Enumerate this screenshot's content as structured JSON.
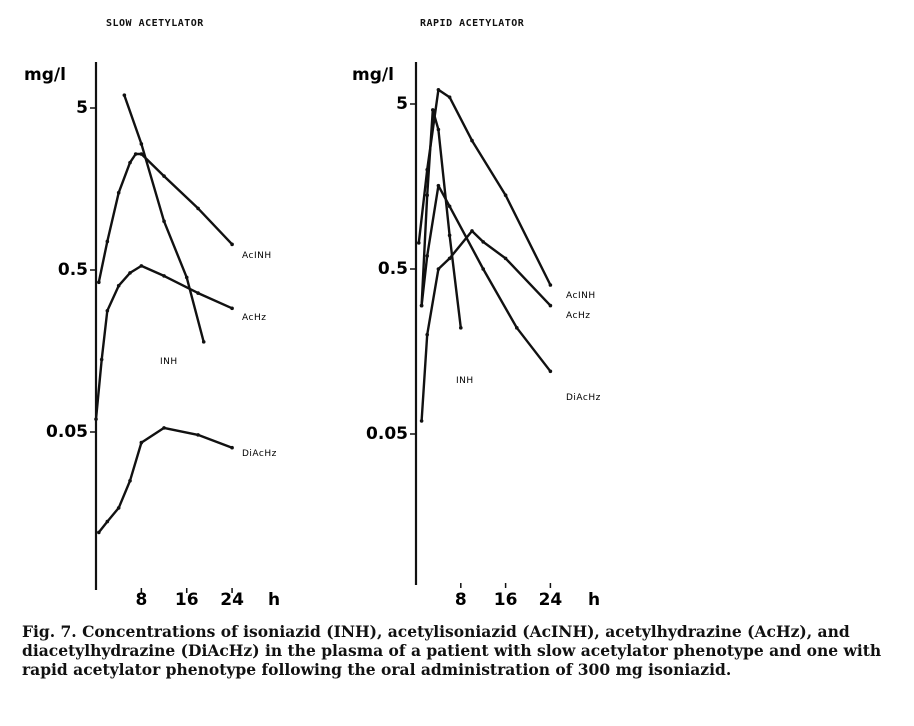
{
  "figure": {
    "caption": "Fig. 7. Concentrations of isoniazid (INH), acetylisoniazid (AcINH), acetylhydrazine (AcHz), and diacetylhydrazine (DiAcHz) in the plasma of a patient with slow acetylator phenotype and one with rapid acetylator phenotype following the oral administration of 300 mg isoniazid."
  },
  "chart_data": [
    {
      "type": "line",
      "title": "SLOW ACETYLATOR",
      "ylabel": "mg/l",
      "xlabel": "h",
      "yscale": "log",
      "ylim": [
        0.01,
        10
      ],
      "xlim": [
        0,
        28
      ],
      "yticks": [
        {
          "value": 5,
          "label": "5"
        },
        {
          "value": 0.5,
          "label": "0.5"
        },
        {
          "value": 0.05,
          "label": "0.05"
        }
      ],
      "xticks": [
        {
          "value": 8,
          "label": "8"
        },
        {
          "value": 16,
          "label": "16"
        },
        {
          "value": 24,
          "label": "24"
        }
      ],
      "series": [
        {
          "name": "INH",
          "x": [
            5,
            8,
            12,
            16,
            19
          ],
          "y": [
            6.0,
            3.0,
            1.0,
            0.45,
            0.18
          ]
        },
        {
          "name": "AcINH",
          "x": [
            0.5,
            2,
            4,
            6,
            7,
            8,
            12,
            18,
            24
          ],
          "y": [
            0.42,
            0.75,
            1.5,
            2.3,
            2.6,
            2.6,
            1.9,
            1.2,
            0.72
          ]
        },
        {
          "name": "AcHz",
          "x": [
            0,
            1,
            2,
            4,
            6,
            8,
            12,
            18,
            24
          ],
          "y": [
            0.06,
            0.14,
            0.28,
            0.4,
            0.48,
            0.53,
            0.46,
            0.36,
            0.29
          ]
        },
        {
          "name": "DiAcHz",
          "x": [
            0.5,
            2,
            4,
            6,
            8,
            12,
            18,
            24
          ],
          "y": [
            0.012,
            0.014,
            0.017,
            0.025,
            0.043,
            0.053,
            0.048,
            0.04
          ]
        }
      ]
    },
    {
      "type": "line",
      "title": "RAPID ACETYLATOR",
      "ylabel": "mg/l",
      "xlabel": "h",
      "yscale": "log",
      "ylim": [
        0.01,
        10
      ],
      "xlim": [
        0,
        28
      ],
      "yticks": [
        {
          "value": 5,
          "label": "5"
        },
        {
          "value": 0.5,
          "label": "0.5"
        },
        {
          "value": 0.05,
          "label": "0.05"
        }
      ],
      "xticks": [
        {
          "value": 8,
          "label": "8"
        },
        {
          "value": 16,
          "label": "16"
        },
        {
          "value": 24,
          "label": "24"
        }
      ],
      "series": [
        {
          "name": "INH",
          "x": [
            1,
            2,
            3,
            4,
            6,
            8
          ],
          "y": [
            0.3,
            1.4,
            4.6,
            3.5,
            0.8,
            0.22
          ]
        },
        {
          "name": "AcINH",
          "x": [
            0.5,
            2,
            4,
            6,
            10,
            16,
            24
          ],
          "y": [
            0.72,
            2.0,
            6.1,
            5.5,
            3.0,
            1.4,
            0.4
          ]
        },
        {
          "name": "AcHz",
          "x": [
            1,
            2,
            4,
            6,
            10,
            12,
            16,
            24
          ],
          "y": [
            0.06,
            0.2,
            0.5,
            0.58,
            0.85,
            0.73,
            0.58,
            0.3
          ]
        },
        {
          "name": "DiAcHz",
          "x": [
            1,
            2,
            4,
            6,
            12,
            18,
            24
          ],
          "y": [
            0.3,
            0.6,
            1.6,
            1.2,
            0.5,
            0.22,
            0.12
          ]
        }
      ]
    }
  ]
}
